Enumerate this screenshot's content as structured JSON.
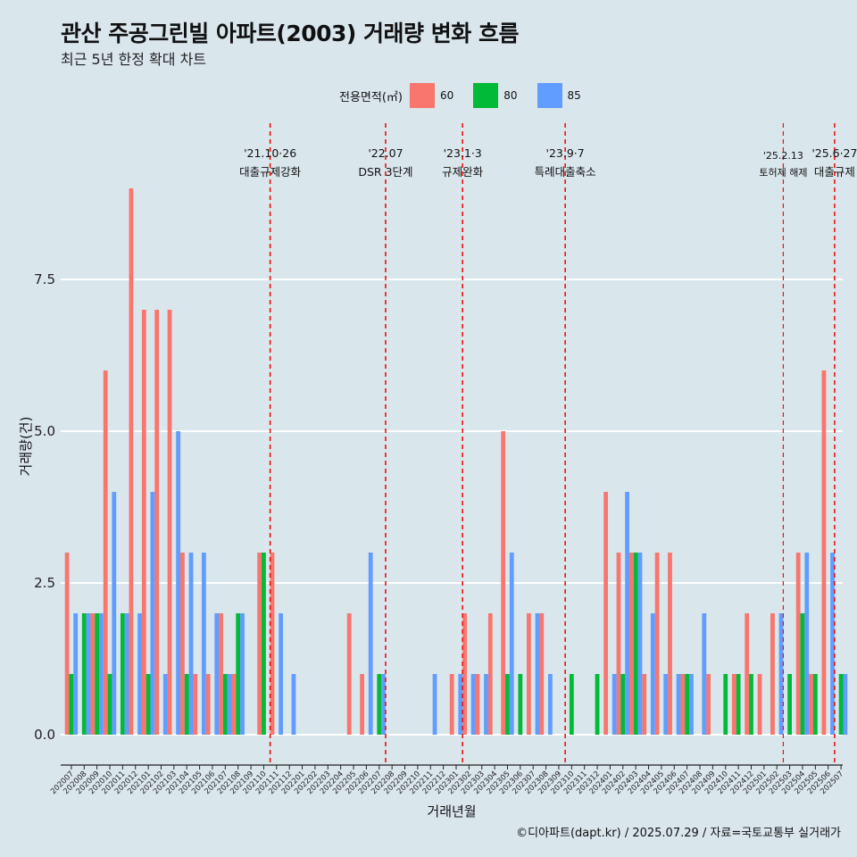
{
  "title": "관산 주공그린빌 아파트(2003) 거래량 변화 흐름",
  "subtitle": "최근 5년 한정 확대 차트",
  "caption": "©디아파트(dapt.kr) / 2025.07.29 / 자료=국토교통부 실거래가",
  "legend": {
    "title": "전용면적(㎡)",
    "items": [
      {
        "label": "60",
        "color": "#f8766d"
      },
      {
        "label": "80",
        "color": "#00ba38"
      },
      {
        "label": "85",
        "color": "#619cff"
      }
    ]
  },
  "chart_data": {
    "type": "bar",
    "xlabel": "거래년월",
    "ylabel": "거래량(건)",
    "ylim": [
      -0.5,
      9.5
    ],
    "yticks": [
      "0.0",
      "2.5",
      "5.0",
      "7.5"
    ],
    "ytick_values": [
      0,
      2.5,
      5,
      7.5
    ],
    "categories": [
      "202007",
      "202008",
      "202009",
      "202010",
      "202011",
      "202012",
      "202101",
      "202102",
      "202103",
      "202104",
      "202105",
      "202106",
      "202107",
      "202108",
      "202109",
      "202110",
      "202111",
      "202112",
      "202201",
      "202202",
      "202203",
      "202204",
      "202205",
      "202206",
      "202207",
      "202208",
      "202209",
      "202210",
      "202211",
      "202212",
      "202301",
      "202302",
      "202303",
      "202304",
      "202305",
      "202306",
      "202307",
      "202308",
      "202309",
      "202310",
      "202311",
      "202312",
      "202401",
      "202402",
      "202403",
      "202404",
      "202405",
      "202406",
      "202407",
      "202408",
      "202409",
      "202410",
      "202411",
      "202412",
      "202501",
      "202502",
      "202503",
      "202504",
      "202505",
      "202506",
      "202507"
    ],
    "series": [
      {
        "name": "60",
        "color": "#f8766d",
        "values": [
          3,
          0,
          2,
          6,
          0,
          9,
          7,
          7,
          7,
          3,
          1,
          1,
          2,
          1,
          0,
          3,
          3,
          0,
          0,
          0,
          0,
          0,
          2,
          1,
          0,
          0,
          0,
          0,
          0,
          0,
          1,
          2,
          1,
          2,
          5,
          0,
          2,
          2,
          0,
          0,
          0,
          0,
          4,
          3,
          3,
          1,
          3,
          3,
          1,
          0,
          1,
          0,
          1,
          2,
          1,
          2,
          0,
          3,
          1,
          6,
          0
        ]
      },
      {
        "name": "80",
        "color": "#00ba38",
        "values": [
          1,
          2,
          2,
          1,
          2,
          0,
          1,
          0,
          0,
          1,
          0,
          0,
          1,
          2,
          0,
          3,
          0,
          0,
          0,
          0,
          0,
          0,
          0,
          0,
          1,
          0,
          0,
          0,
          0,
          0,
          0,
          0,
          0,
          0,
          1,
          1,
          0,
          0,
          0,
          1,
          0,
          1,
          0,
          1,
          3,
          0,
          0,
          0,
          1,
          0,
          0,
          1,
          1,
          1,
          0,
          0,
          1,
          2,
          1,
          0,
          1
        ]
      },
      {
        "name": "85",
        "color": "#619cff",
        "values": [
          2,
          2,
          2,
          4,
          2,
          2,
          4,
          1,
          5,
          3,
          3,
          2,
          1,
          2,
          0,
          0,
          2,
          1,
          0,
          0,
          0,
          0,
          0,
          3,
          1,
          0,
          0,
          0,
          1,
          0,
          1,
          1,
          1,
          0,
          3,
          0,
          2,
          1,
          0,
          0,
          0,
          0,
          1,
          4,
          3,
          2,
          1,
          1,
          1,
          2,
          0,
          0,
          0,
          0,
          0,
          2,
          0,
          3,
          0,
          3,
          1
        ]
      }
    ],
    "events": [
      {
        "after": "202110",
        "date": "'21.10·26",
        "label": "대출규제강화",
        "small": false
      },
      {
        "after": "202207",
        "date": "'22.07",
        "label": "DSR 3단계",
        "small": false
      },
      {
        "after": "202301",
        "date": "'23.1·3",
        "label": "규제완화",
        "small": false
      },
      {
        "after": "202309",
        "date": "'23.9·7",
        "label": "특례대출축소",
        "small": false
      },
      {
        "after": "202502",
        "date": "'25.2.13",
        "label": "토허제 해제",
        "small": true
      },
      {
        "after": "202506",
        "date": "'25.6·27",
        "label": "대출규제",
        "small": false
      }
    ]
  }
}
